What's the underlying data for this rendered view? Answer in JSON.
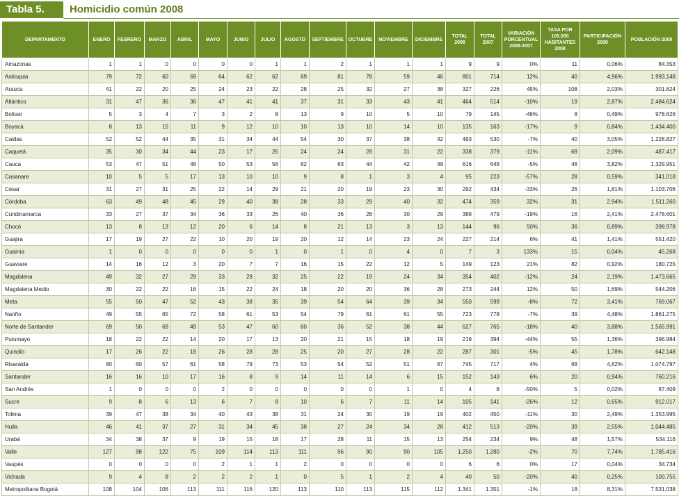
{
  "title": {
    "label": "Tabla 5.",
    "heading": "Homicidio común 2008"
  },
  "columns": [
    "DEPARTAMENTO",
    "ENERO",
    "FEBRERO",
    "MARZO",
    "ABRIL",
    "MAYO",
    "JUNIO",
    "JULIO",
    "AGOSTO",
    "SEPTIEMBRE",
    "OCTUBRE",
    "NOVIEMBRE",
    "DICIEMBRE",
    "TOTAL 2008",
    "TOTAL 2007",
    "VARIACIÓN PORCENTUAL 2008-2007",
    "TASA POR 100.000 HABITANTES 2008",
    "PARTICIPACIÓN 2008",
    "POBLACIÓN 2008"
  ],
  "rows": [
    [
      "Amazonas",
      "1",
      "1",
      "0",
      "0",
      "0",
      "0",
      "1",
      "1",
      "2",
      "1",
      "1",
      "1",
      "9",
      "9",
      "0%",
      "11",
      "0,06%",
      "84.353"
    ],
    [
      "Antioquia",
      "79",
      "72",
      "60",
      "69",
      "64",
      "62",
      "62",
      "69",
      "81",
      "78",
      "59",
      "46",
      "801",
      "714",
      "12%",
      "40",
      "4,96%",
      "1.993.148"
    ],
    [
      "Arauca",
      "41",
      "22",
      "20",
      "25",
      "24",
      "23",
      "22",
      "28",
      "25",
      "32",
      "27",
      "38",
      "327",
      "226",
      "45%",
      "108",
      "2,03%",
      "301.824"
    ],
    [
      "Atlántico",
      "31",
      "47",
      "36",
      "36",
      "47",
      "41",
      "41",
      "37",
      "31",
      "33",
      "43",
      "41",
      "464",
      "514",
      "-10%",
      "19",
      "2,87%",
      "2.484.624"
    ],
    [
      "Bolívar",
      "5",
      "3",
      "4",
      "7",
      "3",
      "2",
      "8",
      "13",
      "9",
      "10",
      "5",
      "10",
      "79",
      "145",
      "-46%",
      "8",
      "0,49%",
      "978.626"
    ],
    [
      "Boyacá",
      "8",
      "13",
      "15",
      "11",
      "9",
      "12",
      "10",
      "10",
      "13",
      "10",
      "14",
      "10",
      "135",
      "163",
      "-17%",
      "9",
      "0,84%",
      "1.434.400"
    ],
    [
      "Caldas",
      "52",
      "52",
      "44",
      "35",
      "31",
      "34",
      "44",
      "54",
      "30",
      "37",
      "38",
      "42",
      "493",
      "530",
      "-7%",
      "40",
      "3,05%",
      "1.228.827"
    ],
    [
      "Caquetá",
      "35",
      "30",
      "34",
      "44",
      "23",
      "17",
      "26",
      "24",
      "24",
      "28",
      "31",
      "22",
      "338",
      "379",
      "-11%",
      "69",
      "2,09%",
      "487.417"
    ],
    [
      "Cauca",
      "53",
      "47",
      "51",
      "46",
      "50",
      "53",
      "56",
      "62",
      "63",
      "44",
      "42",
      "49",
      "616",
      "646",
      "-5%",
      "46",
      "3,82%",
      "1.329.951"
    ],
    [
      "Casanare",
      "10",
      "5",
      "5",
      "17",
      "13",
      "10",
      "10",
      "9",
      "8",
      "1",
      "3",
      "4",
      "95",
      "223",
      "-57%",
      "28",
      "0,59%",
      "341.018"
    ],
    [
      "Cesar",
      "31",
      "27",
      "31",
      "25",
      "22",
      "14",
      "29",
      "21",
      "20",
      "19",
      "23",
      "30",
      "292",
      "434",
      "-33%",
      "26",
      "1,81%",
      "1.103.706"
    ],
    [
      "Córdoba",
      "63",
      "49",
      "48",
      "45",
      "29",
      "40",
      "38",
      "28",
      "33",
      "29",
      "40",
      "32",
      "474",
      "359",
      "32%",
      "31",
      "2,94%",
      "1.511.260"
    ],
    [
      "Cundinamarca",
      "33",
      "27",
      "37",
      "34",
      "36",
      "33",
      "26",
      "40",
      "36",
      "28",
      "30",
      "29",
      "389",
      "479",
      "-19%",
      "16",
      "2,41%",
      "2.478.601"
    ],
    [
      "Chocó",
      "13",
      "8",
      "13",
      "12",
      "20",
      "6",
      "14",
      "8",
      "21",
      "13",
      "3",
      "13",
      "144",
      "96",
      "50%",
      "36",
      "0,89%",
      "398.978"
    ],
    [
      "Guajira",
      "17",
      "19",
      "27",
      "22",
      "10",
      "20",
      "19",
      "20",
      "12",
      "14",
      "23",
      "24",
      "227",
      "214",
      "6%",
      "41",
      "1,41%",
      "551.420"
    ],
    [
      "Guainía",
      "1",
      "0",
      "0",
      "0",
      "0",
      "0",
      "1",
      "0",
      "1",
      "0",
      "4",
      "0",
      "7",
      "3",
      "133%",
      "15",
      "0,04%",
      "45.268"
    ],
    [
      "Guaviare",
      "14",
      "16",
      "12",
      "3",
      "20",
      "7",
      "7",
      "16",
      "15",
      "22",
      "12",
      "5",
      "149",
      "123",
      "21%",
      "82",
      "0,92%",
      "180.725"
    ],
    [
      "Magdalena",
      "49",
      "32",
      "27",
      "29",
      "33",
      "28",
      "32",
      "25",
      "22",
      "19",
      "24",
      "34",
      "354",
      "402",
      "-12%",
      "24",
      "2,19%",
      "1.473.665"
    ],
    [
      "Magdalena Medio",
      "30",
      "22",
      "22",
      "16",
      "15",
      "22",
      "24",
      "18",
      "20",
      "20",
      "36",
      "28",
      "273",
      "244",
      "12%",
      "50",
      "1,69%",
      "544.206"
    ],
    [
      "Meta",
      "55",
      "50",
      "47",
      "52",
      "43",
      "38",
      "35",
      "39",
      "54",
      "64",
      "39",
      "34",
      "550",
      "599",
      "-8%",
      "72",
      "3,41%",
      "769.067"
    ],
    [
      "Nariño",
      "49",
      "55",
      "65",
      "72",
      "58",
      "61",
      "53",
      "54",
      "79",
      "61",
      "61",
      "55",
      "723",
      "778",
      "-7%",
      "39",
      "4,48%",
      "1.861.275"
    ],
    [
      "Norte de Santander",
      "69",
      "50",
      "69",
      "49",
      "53",
      "47",
      "60",
      "60",
      "36",
      "52",
      "38",
      "44",
      "627",
      "765",
      "-18%",
      "40",
      "3,88%",
      "1.565.991"
    ],
    [
      "Putumayo",
      "18",
      "22",
      "22",
      "14",
      "20",
      "17",
      "13",
      "20",
      "21",
      "15",
      "18",
      "19",
      "219",
      "394",
      "-44%",
      "55",
      "1,36%",
      "396.984"
    ],
    [
      "Quindío",
      "17",
      "26",
      "22",
      "18",
      "26",
      "28",
      "28",
      "25",
      "20",
      "27",
      "28",
      "22",
      "287",
      "301",
      "-5%",
      "45",
      "1,78%",
      "642.148"
    ],
    [
      "Risaralda",
      "80",
      "60",
      "57",
      "61",
      "58",
      "79",
      "73",
      "53",
      "54",
      "52",
      "51",
      "67",
      "745",
      "717",
      "4%",
      "69",
      "4,62%",
      "1.074.797"
    ],
    [
      "Santander",
      "16",
      "16",
      "10",
      "17",
      "16",
      "8",
      "9",
      "14",
      "11",
      "14",
      "6",
      "15",
      "152",
      "143",
      "6%",
      "20",
      "0,94%",
      "760.216"
    ],
    [
      "San Andrés",
      "1",
      "0",
      "0",
      "0",
      "2",
      "0",
      "0",
      "0",
      "0",
      "0",
      "1",
      "0",
      "4",
      "8",
      "-50%",
      "5",
      "0,02%",
      "87.409"
    ],
    [
      "Sucre",
      "9",
      "8",
      "6",
      "13",
      "6",
      "7",
      "8",
      "10",
      "6",
      "7",
      "11",
      "14",
      "105",
      "141",
      "-26%",
      "12",
      "0,65%",
      "912.017"
    ],
    [
      "Tolima",
      "39",
      "47",
      "38",
      "34",
      "40",
      "43",
      "38",
      "31",
      "24",
      "30",
      "19",
      "19",
      "402",
      "450",
      "-11%",
      "30",
      "2,49%",
      "1.353.995"
    ],
    [
      "Huila",
      "46",
      "41",
      "37",
      "27",
      "31",
      "34",
      "45",
      "38",
      "27",
      "24",
      "34",
      "28",
      "412",
      "513",
      "-20%",
      "39",
      "2,55%",
      "1.044.485"
    ],
    [
      "Urabá",
      "34",
      "38",
      "37",
      "9",
      "19",
      "15",
      "18",
      "17",
      "28",
      "11",
      "15",
      "13",
      "254",
      "234",
      "9%",
      "48",
      "1,57%",
      "534.116"
    ],
    [
      "Valle",
      "127",
      "98",
      "122",
      "75",
      "109",
      "114",
      "113",
      "111",
      "96",
      "90",
      "90",
      "105",
      "1.250",
      "1.280",
      "-2%",
      "70",
      "7,74%",
      "1.785.416"
    ],
    [
      "Vaupés",
      "0",
      "0",
      "0",
      "0",
      "2",
      "1",
      "1",
      "2",
      "0",
      "0",
      "0",
      "0",
      "6",
      "6",
      "0%",
      "17",
      "0,04%",
      "34.734"
    ],
    [
      "Vichada",
      "9",
      "4",
      "8",
      "2",
      "2",
      "2",
      "1",
      "0",
      "5",
      "1",
      "2",
      "4",
      "40",
      "50",
      "-20%",
      "40",
      "0,25%",
      "100.755"
    ],
    [
      "Metropolitana Bogotá",
      "108",
      "104",
      "106",
      "113",
      "111",
      "116",
      "120",
      "113",
      "110",
      "113",
      "115",
      "112",
      "1.341",
      "1.351",
      "-1%",
      "18",
      "8,31%",
      "7.531.038"
    ]
  ]
}
